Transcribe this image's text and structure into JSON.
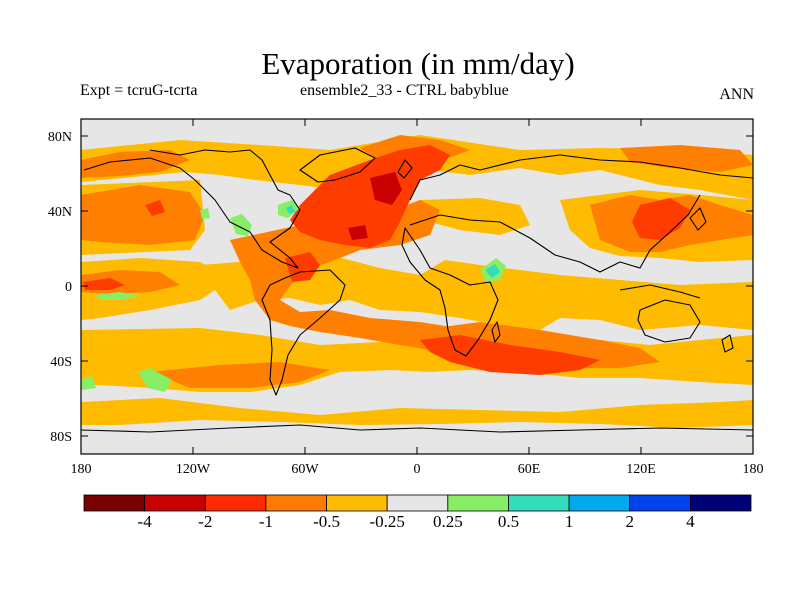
{
  "title": "Evaporation (in mm/day)",
  "subtitle_left": "Expt = tcruG-tcrta",
  "subtitle_center": "ensemble2_33 - CTRL babyblue",
  "subtitle_right": "ANN",
  "axes": {
    "lon_ticks": [
      "180",
      "120W",
      "60W",
      "0",
      "60E",
      "120E",
      "180"
    ],
    "lat_ticks": [
      "80N",
      "40N",
      "0",
      "40S",
      "80S"
    ]
  },
  "colorbar": {
    "labels": [
      "-4",
      "-2",
      "-1",
      "-0.5",
      "-0.25",
      "0.25",
      "0.5",
      "1",
      "2",
      "4"
    ],
    "colors": [
      "#7a0000",
      "#c80000",
      "#ff2a00",
      "#ff7a00",
      "#ffbb00",
      "#e6e6e6",
      "#88ee66",
      "#33ddbb",
      "#00aaee",
      "#0044ee",
      "#000077"
    ]
  },
  "palette": {
    "background": "#e6e6e6",
    "dark_red": "#c80000",
    "red": "#ff3c00",
    "orange": "#ff7f00",
    "amber": "#ffbb00",
    "light_green": "#88ee66",
    "teal": "#33ddbb",
    "coast": "#000000"
  }
}
